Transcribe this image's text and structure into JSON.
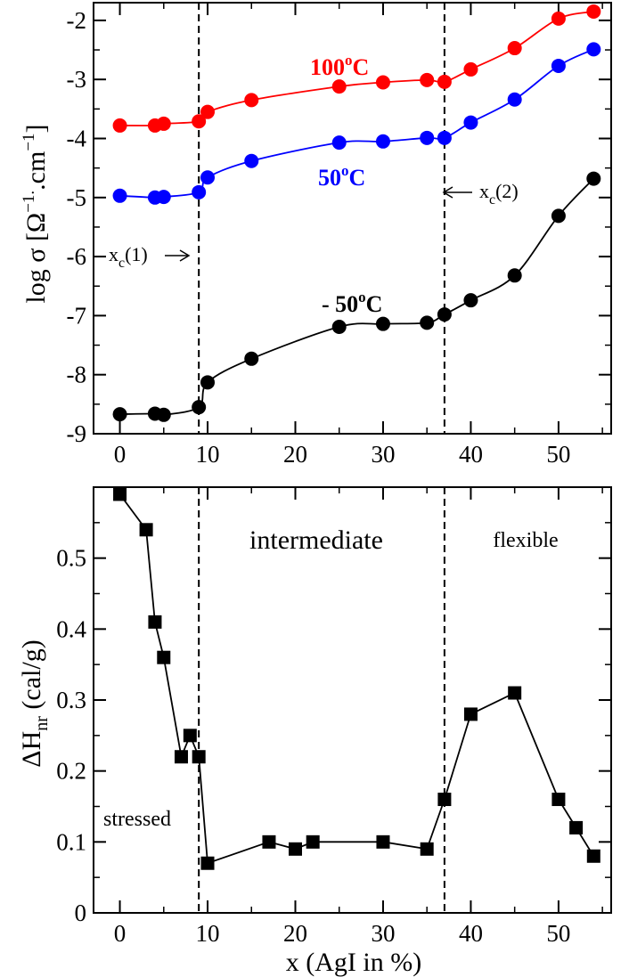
{
  "chart_data": [
    {
      "type": "line",
      "panel": "top",
      "xlabel": "",
      "ylabel": "log σ [Ω-1.cm-1]",
      "ylabel_parts": {
        "prefix": "log σ [Ω",
        "sup1": "−1.",
        "mid": ".cm",
        "sup2": "−1",
        "suffix": "]"
      },
      "xlim": [
        -3,
        56
      ],
      "ylim": [
        -9,
        -1.7
      ],
      "xticks": [
        0,
        10,
        20,
        30,
        40,
        50
      ],
      "yticks": [
        -9,
        -8,
        -7,
        -6,
        -5,
        -4,
        -3,
        -2
      ],
      "xtick_labels": [
        "0",
        "10",
        "20",
        "30",
        "40",
        "50"
      ],
      "ytick_labels": [
        "-9",
        "-8",
        "-7",
        "-6",
        "-5",
        "-4",
        "-3",
        "-2"
      ],
      "vlines": [
        9,
        37
      ],
      "series": [
        {
          "name": "100oC",
          "label_main": "100",
          "label_sup": "o",
          "label_end": "C",
          "color": "#ff0000",
          "x": [
            0,
            4,
            5,
            9,
            10,
            15,
            25,
            30,
            35,
            37,
            40,
            45,
            50,
            54
          ],
          "y": [
            -3.78,
            -3.78,
            -3.75,
            -3.71,
            -3.55,
            -3.35,
            -3.12,
            -3.05,
            -3.01,
            -3.04,
            -2.83,
            -2.47,
            -1.97,
            -1.85
          ]
        },
        {
          "name": "50oC",
          "label_main": "50",
          "label_sup": "o",
          "label_end": "C",
          "color": "#0000ff",
          "x": [
            0,
            4,
            5,
            9,
            10,
            15,
            25,
            30,
            35,
            37,
            40,
            45,
            50,
            54
          ],
          "y": [
            -4.97,
            -5.0,
            -4.99,
            -4.91,
            -4.66,
            -4.38,
            -4.07,
            -4.05,
            -3.99,
            -3.99,
            -3.73,
            -3.34,
            -2.77,
            -2.49
          ]
        },
        {
          "name": "- 50oC",
          "label_main": "- 50",
          "label_sup": "o",
          "label_end": "C",
          "color": "#000000",
          "x": [
            0,
            4,
            5,
            9,
            10,
            15,
            25,
            30,
            35,
            37,
            40,
            45,
            50,
            54
          ],
          "y": [
            -8.67,
            -8.66,
            -8.68,
            -8.55,
            -8.13,
            -7.73,
            -7.19,
            -7.14,
            -7.12,
            -6.98,
            -6.74,
            -6.32,
            -5.31,
            -4.68
          ]
        }
      ],
      "annotations": [
        {
          "text_main": "x",
          "text_sub": "c",
          "text_end": "(1)",
          "arrow": "right",
          "at_x": 9,
          "at_y": -6.0
        },
        {
          "text_main": "x",
          "text_sub": "c",
          "text_end": "(2)",
          "arrow": "left",
          "at_x": 37,
          "at_y": -5.25
        }
      ]
    },
    {
      "type": "line",
      "panel": "bottom",
      "xlabel": "x (AgI in %)",
      "ylabel": "ΔHnr (cal/g)",
      "ylabel_parts": {
        "prefix": "ΔH",
        "sub": "nr",
        "suffix": " (cal/g)"
      },
      "xlim": [
        -3,
        56
      ],
      "ylim": [
        0,
        0.6
      ],
      "xticks": [
        0,
        10,
        20,
        30,
        40,
        50
      ],
      "yticks": [
        0,
        0.1,
        0.2,
        0.3,
        0.4,
        0.5
      ],
      "xtick_labels": [
        "0",
        "10",
        "20",
        "30",
        "40",
        "50"
      ],
      "ytick_labels": [
        "0",
        "0.1",
        "0.2",
        "0.3",
        "0.4",
        "0.5"
      ],
      "vlines": [
        9,
        37
      ],
      "series": [
        {
          "name": "ΔHnr",
          "color": "#000000",
          "x": [
            0,
            3,
            4,
            5,
            7,
            8,
            9,
            10,
            17,
            20,
            22,
            30,
            35,
            37,
            40,
            45,
            50,
            52,
            54
          ],
          "y": [
            0.59,
            0.54,
            0.41,
            0.36,
            0.22,
            0.25,
            0.22,
            0.07,
            0.1,
            0.09,
            0.1,
            0.1,
            0.09,
            0.16,
            0.28,
            0.31,
            0.16,
            0.12,
            0.08
          ]
        }
      ],
      "region_labels": [
        "stressed",
        "intermediate",
        "flexible"
      ]
    }
  ]
}
